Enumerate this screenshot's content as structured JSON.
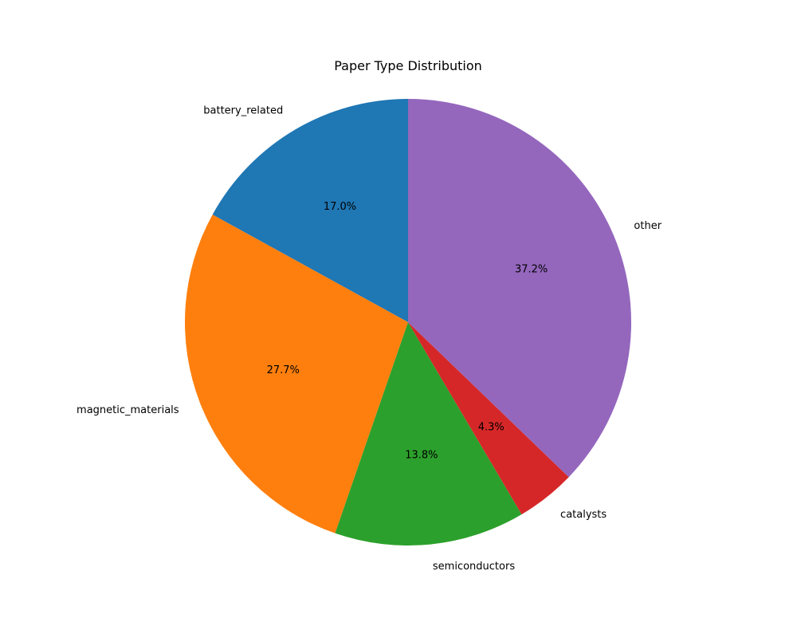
{
  "chart_data": {
    "type": "pie",
    "title": "Paper Type Distribution",
    "start_angle_deg": 90,
    "direction": "counterclockwise",
    "slices": [
      {
        "label": "battery_related",
        "value": 17.0,
        "pct_text": "17.0%",
        "color": "#1f77b4"
      },
      {
        "label": "magnetic_materials",
        "value": 27.7,
        "pct_text": "27.7%",
        "color": "#ff7f0e"
      },
      {
        "label": "semiconductors",
        "value": 13.8,
        "pct_text": "13.8%",
        "color": "#2ca02c"
      },
      {
        "label": "catalysts",
        "value": 4.3,
        "pct_text": "4.3%",
        "color": "#d62728"
      },
      {
        "label": "other",
        "value": 37.2,
        "pct_text": "37.2%",
        "color": "#9467bd"
      }
    ]
  }
}
